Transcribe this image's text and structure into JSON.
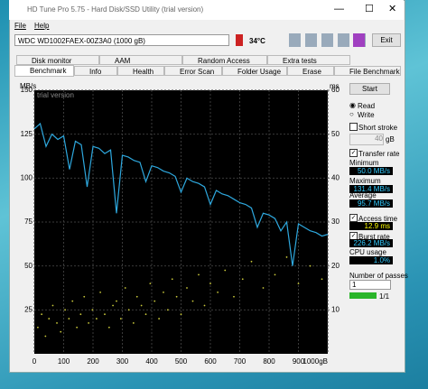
{
  "window": {
    "title": "HD Tune Pro 5.75 - Hard Disk/SSD Utility (trial version)",
    "menu": [
      "File",
      "Help"
    ],
    "drive": "WDC WD1002FAEX-00Z3A0 (1000 gB)",
    "temperature": "34°C",
    "exit": "Exit"
  },
  "tabs": {
    "row1": [
      "Disk monitor",
      "AAM",
      "Random Access",
      "Extra tests"
    ],
    "row2": [
      "Benchmark",
      "Info",
      "Health",
      "Error Scan",
      "Folder Usage",
      "Erase",
      "File Benchmark"
    ]
  },
  "panel": {
    "start": "Start",
    "read": "Read",
    "write": "Write",
    "short_stroke": "Short stroke",
    "stroke_size": "40",
    "stroke_unit": "gB",
    "transfer_rate": "Transfer rate",
    "minimum_label": "Minimum",
    "minimum": "50.0 MB/s",
    "maximum_label": "Maximum",
    "maximum": "131.4 MB/s",
    "average_label": "Average",
    "average": "95.7 MB/s",
    "access_label": "Access time",
    "access": "12.9 ms",
    "burst_label": "Burst rate",
    "burst": "226.2 MB/s",
    "cpu_label": "CPU usage",
    "cpu": "1.0%",
    "passes_label": "Number of passes",
    "passes": "1",
    "progress": "1/1"
  },
  "chart_data": {
    "type": "line",
    "watermark": "trial version",
    "y_label": "MB/s",
    "y2_label": "ms",
    "xlim": [
      0,
      1000
    ],
    "xticks": [
      0,
      100,
      200,
      300,
      400,
      500,
      600,
      700,
      800,
      900,
      {
        "value": 1000,
        "label": "1000gB"
      }
    ],
    "ylim": [
      0,
      150
    ],
    "yticks": [
      25,
      50,
      75,
      100,
      125,
      150
    ],
    "y2lim": [
      0,
      60
    ],
    "y2ticks": [
      10,
      20,
      30,
      40,
      50,
      60
    ],
    "grid": true,
    "series": [
      {
        "color": "#2ea8de",
        "x": [
          0,
          20,
          40,
          60,
          80,
          100,
          120,
          140,
          160,
          180,
          200,
          220,
          240,
          260,
          280,
          300,
          320,
          340,
          360,
          380,
          400,
          420,
          440,
          460,
          480,
          500,
          520,
          540,
          560,
          580,
          600,
          620,
          640,
          660,
          680,
          700,
          720,
          740,
          760,
          780,
          800,
          820,
          840,
          860,
          880,
          900,
          920,
          940,
          960,
          980,
          1000
        ],
        "values": [
          128,
          131,
          118,
          125,
          122,
          124,
          105,
          121,
          119,
          95,
          118,
          117,
          114,
          116,
          80,
          113,
          112,
          110,
          109,
          98,
          107,
          106,
          104,
          103,
          101,
          92,
          100,
          98,
          97,
          95,
          85,
          93,
          91,
          90,
          88,
          86,
          85,
          83,
          72,
          80,
          79,
          77,
          70,
          75,
          50,
          74,
          72,
          70,
          69,
          67,
          68
        ]
      },
      {
        "type": "scatter",
        "axis": "y2",
        "color": "#c9c83a",
        "x": [
          12,
          25,
          38,
          50,
          63,
          77,
          90,
          105,
          118,
          130,
          145,
          158,
          170,
          185,
          198,
          212,
          225,
          240,
          255,
          268,
          280,
          295,
          310,
          322,
          338,
          350,
          365,
          380,
          395,
          410,
          425,
          440,
          455,
          470,
          485,
          500,
          520,
          540,
          560,
          580,
          600,
          625,
          650,
          680,
          710,
          740,
          780,
          820,
          860,
          900,
          940,
          980
        ],
        "values": [
          6,
          9,
          4,
          8,
          11,
          7,
          5,
          10,
          8,
          12,
          6,
          9,
          13,
          7,
          10,
          8,
          14,
          9,
          6,
          11,
          12,
          8,
          15,
          10,
          7,
          13,
          11,
          9,
          16,
          12,
          8,
          14,
          10,
          17,
          13,
          9,
          15,
          12,
          18,
          11,
          16,
          14,
          19,
          13,
          17,
          21,
          15,
          18,
          22,
          16,
          20,
          17
        ]
      }
    ]
  }
}
